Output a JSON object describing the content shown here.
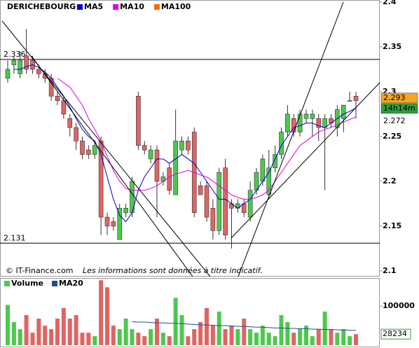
{
  "chart_data": [
    {
      "type": "candlestick",
      "title": "DERICHEBOURG",
      "up_color": "#4cc94c",
      "down_color": "#e06464",
      "open": [
        2.315,
        2.33,
        2.32,
        2.34,
        2.335,
        2.325,
        2.32,
        2.315,
        2.295,
        2.29,
        2.27,
        2.26,
        2.245,
        2.235,
        2.23,
        2.245,
        2.16,
        2.155,
        2.135,
        2.165,
        2.165,
        2.295,
        2.24,
        2.225,
        2.235,
        2.2,
        2.215,
        2.185,
        2.235,
        2.245,
        2.255,
        2.195,
        2.195,
        2.17,
        2.145,
        2.215,
        2.175,
        2.17,
        2.175,
        2.16,
        2.19,
        2.2,
        2.185,
        2.215,
        2.23,
        2.255,
        2.27,
        2.255,
        2.27,
        2.27,
        2.27,
        2.26,
        2.27,
        2.26,
        2.27,
        2.29,
        2.295
      ],
      "high": [
        2.335,
        2.34,
        2.345,
        2.37,
        2.34,
        2.33,
        2.325,
        2.32,
        2.3,
        2.295,
        2.275,
        2.265,
        2.25,
        2.24,
        2.245,
        2.25,
        2.165,
        2.16,
        2.175,
        2.175,
        2.205,
        2.3,
        2.245,
        2.24,
        2.24,
        2.21,
        2.22,
        2.28,
        2.25,
        2.25,
        2.26,
        2.2,
        2.2,
        2.18,
        2.215,
        2.225,
        2.18,
        2.18,
        2.18,
        2.2,
        2.215,
        2.23,
        2.235,
        2.24,
        2.26,
        2.285,
        2.275,
        2.28,
        2.28,
        2.28,
        2.275,
        2.275,
        2.275,
        2.285,
        2.285,
        2.3,
        2.3
      ],
      "low": [
        2.31,
        2.32,
        2.315,
        2.32,
        2.32,
        2.315,
        2.31,
        2.29,
        2.285,
        2.27,
        2.25,
        2.235,
        2.225,
        2.225,
        2.225,
        2.14,
        2.14,
        2.145,
        2.135,
        2.16,
        2.16,
        2.235,
        2.23,
        2.22,
        2.16,
        2.195,
        2.185,
        2.185,
        2.23,
        2.23,
        2.16,
        2.185,
        2.155,
        2.135,
        2.14,
        2.135,
        2.125,
        2.165,
        2.16,
        2.155,
        2.185,
        2.195,
        2.18,
        2.21,
        2.225,
        2.25,
        2.25,
        2.25,
        2.265,
        2.25,
        2.245,
        2.19,
        2.26,
        2.25,
        2.255,
        2.29,
        2.27
      ],
      "close": [
        2.325,
        2.335,
        2.335,
        2.325,
        2.325,
        2.32,
        2.315,
        2.295,
        2.29,
        2.275,
        2.26,
        2.245,
        2.23,
        2.23,
        2.24,
        2.16,
        2.15,
        2.15,
        2.17,
        2.17,
        2.2,
        2.24,
        2.235,
        2.235,
        2.2,
        2.205,
        2.19,
        2.245,
        2.245,
        2.235,
        2.165,
        2.185,
        2.16,
        2.145,
        2.21,
        2.14,
        2.17,
        2.175,
        2.165,
        2.19,
        2.21,
        2.225,
        2.215,
        2.23,
        2.255,
        2.275,
        2.255,
        2.275,
        2.275,
        2.275,
        2.26,
        2.27,
        2.265,
        2.28,
        2.285,
        2.29,
        2.29
      ],
      "series": [
        {
          "name": "MA5",
          "color": "#0000cc",
          "values": [
            null,
            2.325,
            2.325,
            2.328,
            2.33,
            2.327,
            2.322,
            2.315,
            2.305,
            2.295,
            2.283,
            2.27,
            2.258,
            2.25,
            2.245,
            2.23,
            2.205,
            2.18,
            2.162,
            2.155,
            2.165,
            2.19,
            2.205,
            2.215,
            2.225,
            2.225,
            2.22,
            2.225,
            2.23,
            2.225,
            2.22,
            2.21,
            2.2,
            2.19,
            2.18,
            2.18,
            2.175,
            2.17,
            2.175,
            2.18,
            2.19,
            2.2,
            2.21,
            2.225,
            2.24,
            2.25,
            2.26,
            2.262,
            2.265,
            2.265,
            2.262,
            2.26,
            2.265,
            2.27,
            2.275,
            2.278,
            2.282
          ]
        },
        {
          "name": "MA10",
          "color": "#e000e0",
          "values": [
            null,
            null,
            null,
            null,
            null,
            null,
            null,
            null,
            2.315,
            2.31,
            2.305,
            2.295,
            2.285,
            2.27,
            2.258,
            2.245,
            2.228,
            2.212,
            2.2,
            2.192,
            2.19,
            2.19,
            2.19,
            2.192,
            2.195,
            2.2,
            2.205,
            2.208,
            2.21,
            2.212,
            2.21,
            2.207,
            2.205,
            2.2,
            2.195,
            2.19,
            2.185,
            2.182,
            2.18,
            2.18,
            2.182,
            2.185,
            2.19,
            2.2,
            2.21,
            2.22,
            2.23,
            2.24,
            2.245,
            2.25,
            2.255,
            2.258,
            2.26,
            2.263,
            2.266,
            2.269,
            2.272
          ]
        },
        {
          "name": "MA100",
          "color": "#ff6600",
          "values": [
            null,
            null,
            null,
            null,
            null,
            null,
            null,
            null,
            null,
            null,
            null,
            null,
            null,
            null,
            null,
            null,
            null,
            null,
            null,
            null,
            null,
            null,
            null,
            null,
            null,
            null,
            null,
            null,
            null,
            null,
            null,
            null,
            null,
            null,
            null,
            null,
            null,
            null,
            null,
            null,
            null,
            null,
            null,
            null,
            null,
            null,
            null,
            null,
            null,
            null,
            null,
            null,
            null,
            null,
            null,
            null,
            null
          ]
        }
      ],
      "ylim": [
        2.0937,
        2.4023
      ],
      "yticks": [
        2.1,
        2.15,
        2.2,
        2.25,
        2.3,
        2.35,
        2.4
      ],
      "levels": [
        2.336,
        2.131
      ],
      "price_tag": 2.293,
      "time_tag": "14h14m",
      "ma_tag": 2.272,
      "source": "© IT-Finance.com",
      "disclaimer": "Les informations sont données à titre indicatif."
    },
    {
      "type": "bar",
      "series": [
        {
          "name": "Volume",
          "color": "#4cc94c",
          "values": [
            103000,
            59000,
            41000,
            77000,
            32000,
            68000,
            50000,
            41000,
            68000,
            95000,
            68000,
            77000,
            32000,
            32000,
            23000,
            166000,
            148000,
            50000,
            41000,
            68000,
            41000,
            32000,
            23000,
            41000,
            68000,
            32000,
            23000,
            121000,
            77000,
            23000,
            41000,
            59000,
            95000,
            50000,
            86000,
            41000,
            50000,
            41000,
            68000,
            41000,
            32000,
            50000,
            32000,
            23000,
            77000,
            59000,
            32000,
            41000,
            50000,
            23000,
            41000,
            86000,
            41000,
            32000,
            41000,
            23000,
            28234
          ]
        },
        {
          "name": "MA20",
          "color": "#1f4e8c",
          "type": "line",
          "values": [
            null,
            null,
            null,
            null,
            null,
            null,
            null,
            null,
            null,
            null,
            null,
            null,
            null,
            null,
            null,
            null,
            null,
            null,
            null,
            null,
            60000,
            59000,
            59000,
            58000,
            57000,
            57000,
            56000,
            56000,
            55000,
            54000,
            53000,
            52000,
            52000,
            51000,
            50000,
            50000,
            49000,
            48000,
            48000,
            47000,
            46000,
            46000,
            45000,
            44000,
            44000,
            43000,
            43000,
            42000,
            42000,
            41000,
            41000,
            40000,
            40000,
            39000,
            39000,
            38000,
            38000
          ]
        }
      ],
      "ylim": [
        0,
        170000
      ],
      "yticks": [
        100000
      ],
      "volume_tag": 28234
    }
  ]
}
